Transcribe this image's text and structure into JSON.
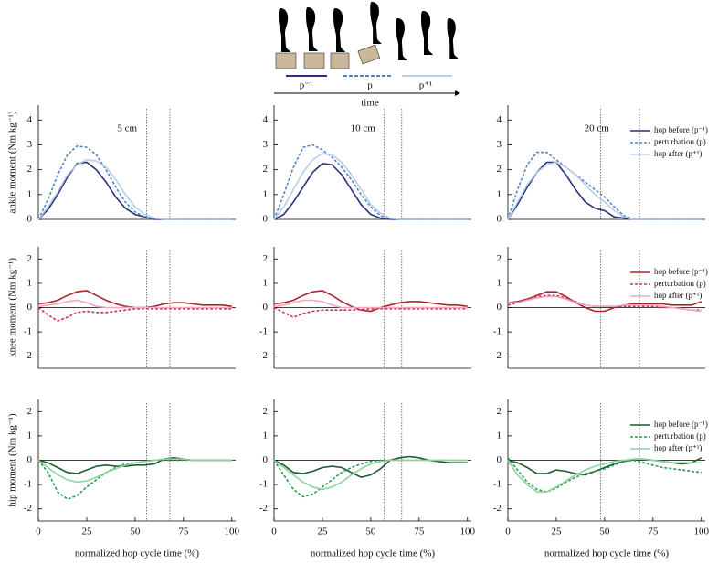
{
  "illustration": {
    "period_labels": [
      "p⁻¹",
      "p",
      "p⁺¹"
    ],
    "time_label": "time"
  },
  "chart_data": [
    {
      "type": "line",
      "annotation": "5 cm",
      "ylabel": "ankle moment (Nm kg⁻¹)",
      "x": [
        0,
        5,
        10,
        15,
        20,
        25,
        30,
        35,
        40,
        45,
        50,
        55,
        60,
        65,
        70,
        75,
        80,
        85,
        90,
        95,
        100
      ],
      "xlim": [
        0,
        102
      ],
      "ylim": [
        0,
        4.6
      ],
      "yticks": [
        0,
        1,
        2,
        3,
        4
      ],
      "vlines": [
        56,
        68
      ],
      "zero_line": false,
      "series": [
        {
          "color": "#2c2f7a",
          "dash": false,
          "values": [
            0,
            0.4,
            1.0,
            1.7,
            2.25,
            2.3,
            2.0,
            1.5,
            0.9,
            0.45,
            0.2,
            0.1,
            0,
            0,
            0,
            0,
            0,
            0,
            0,
            0,
            0
          ]
        },
        {
          "color": "#4f86c6",
          "dash": true,
          "values": [
            0,
            0.8,
            1.8,
            2.6,
            2.95,
            2.9,
            2.6,
            2.0,
            1.3,
            0.7,
            0.3,
            0.1,
            0,
            0,
            0,
            0,
            0,
            0,
            0,
            0,
            0
          ]
        },
        {
          "color": "#b8cde8",
          "dash": false,
          "values": [
            0,
            0.5,
            1.1,
            1.8,
            2.2,
            2.4,
            2.35,
            2.1,
            1.6,
            1.0,
            0.5,
            0.2,
            0.05,
            0,
            0,
            0,
            0,
            0,
            0,
            0,
            0
          ]
        }
      ]
    },
    {
      "type": "line",
      "annotation": "10 cm",
      "x": [
        0,
        5,
        10,
        15,
        20,
        25,
        30,
        35,
        40,
        45,
        50,
        55,
        60,
        65,
        70,
        75,
        80,
        85,
        90,
        95,
        100
      ],
      "xlim": [
        0,
        102
      ],
      "ylim": [
        0,
        4.6
      ],
      "yticks": [
        0,
        1,
        2,
        3,
        4
      ],
      "vlines": [
        57,
        66
      ],
      "zero_line": false,
      "series": [
        {
          "color": "#2c2f7a",
          "dash": false,
          "values": [
            0,
            0.2,
            0.7,
            1.3,
            1.9,
            2.25,
            2.2,
            1.8,
            1.2,
            0.6,
            0.2,
            0.05,
            0,
            0,
            0,
            0,
            0,
            0,
            0,
            0,
            0
          ]
        },
        {
          "color": "#4f86c6",
          "dash": true,
          "values": [
            0,
            1.0,
            2.1,
            2.9,
            3.0,
            2.8,
            2.5,
            2.1,
            1.6,
            1.0,
            0.5,
            0.15,
            0,
            0,
            0,
            0,
            0,
            0,
            0,
            0,
            0
          ]
        },
        {
          "color": "#b8cde8",
          "dash": false,
          "values": [
            0,
            0.5,
            1.2,
            1.9,
            2.4,
            2.65,
            2.6,
            2.3,
            1.8,
            1.2,
            0.6,
            0.25,
            0.05,
            0,
            0,
            0,
            0,
            0,
            0,
            0,
            0
          ]
        }
      ]
    },
    {
      "type": "line",
      "annotation": "20 cm",
      "legend": true,
      "x": [
        0,
        5,
        10,
        15,
        20,
        25,
        30,
        35,
        40,
        45,
        50,
        55,
        60,
        65,
        70,
        75,
        80,
        85,
        90,
        95,
        100
      ],
      "xlim": [
        0,
        102
      ],
      "ylim": [
        0,
        4.6
      ],
      "yticks": [
        0,
        1,
        2,
        3,
        4
      ],
      "vlines": [
        48,
        68
      ],
      "zero_line": false,
      "series": [
        {
          "name": "hop before (p⁻¹)",
          "color": "#2c2f7a",
          "dash": false,
          "values": [
            0,
            0.6,
            1.3,
            1.9,
            2.3,
            2.3,
            1.8,
            1.2,
            0.7,
            0.45,
            0.35,
            0.1,
            0.05,
            0,
            0,
            0,
            0,
            0,
            0,
            0,
            0
          ]
        },
        {
          "name": "perturbation (p)",
          "color": "#4f86c6",
          "dash": true,
          "values": [
            0,
            1.2,
            2.2,
            2.7,
            2.7,
            2.4,
            2.1,
            1.8,
            1.5,
            1.2,
            0.9,
            0.5,
            0.15,
            0.02,
            0,
            0,
            0,
            0,
            0,
            0,
            0
          ]
        },
        {
          "name": "hop after (p⁺¹)",
          "color": "#b8cde8",
          "dash": false,
          "values": [
            0,
            0.7,
            1.4,
            1.9,
            2.2,
            2.3,
            2.1,
            1.8,
            1.4,
            1.0,
            0.7,
            0.35,
            0.1,
            0,
            0,
            0,
            0,
            0,
            0,
            0,
            0
          ]
        }
      ]
    },
    {
      "type": "line",
      "ylabel": "knee moment (Nm kg⁻¹)",
      "x": [
        0,
        5,
        10,
        15,
        20,
        25,
        30,
        35,
        40,
        45,
        50,
        55,
        60,
        65,
        70,
        75,
        80,
        85,
        90,
        95,
        100
      ],
      "xlim": [
        0,
        102
      ],
      "ylim": [
        -2.5,
        2.5
      ],
      "yticks": [
        -2,
        -1,
        0,
        1,
        2
      ],
      "vlines": [
        56,
        68
      ],
      "zero_line": true,
      "series": [
        {
          "color": "#a8272e",
          "dash": false,
          "values": [
            0.15,
            0.2,
            0.3,
            0.5,
            0.65,
            0.7,
            0.5,
            0.3,
            0.15,
            0.05,
            0,
            0,
            0.05,
            0.15,
            0.2,
            0.2,
            0.15,
            0.1,
            0.1,
            0.1,
            0.05
          ]
        },
        {
          "color": "#d4305a",
          "dash": true,
          "values": [
            0,
            -0.3,
            -0.55,
            -0.4,
            -0.2,
            -0.15,
            -0.2,
            -0.2,
            -0.15,
            -0.1,
            -0.05,
            -0.05,
            -0.05,
            -0.05,
            -0.05,
            -0.05,
            -0.05,
            -0.05,
            -0.05,
            -0.05,
            -0.05
          ]
        },
        {
          "color": "#f0a8c0",
          "dash": false,
          "values": [
            0.05,
            0.1,
            0.15,
            0.25,
            0.3,
            0.2,
            0.05,
            0,
            0,
            0,
            0,
            0,
            0,
            0,
            0,
            0,
            0,
            0,
            0,
            0,
            0
          ]
        }
      ]
    },
    {
      "type": "line",
      "x": [
        0,
        5,
        10,
        15,
        20,
        25,
        30,
        35,
        40,
        45,
        50,
        55,
        60,
        65,
        70,
        75,
        80,
        85,
        90,
        95,
        100
      ],
      "xlim": [
        0,
        102
      ],
      "ylim": [
        -2.5,
        2.5
      ],
      "yticks": [
        -2,
        -1,
        0,
        1,
        2
      ],
      "vlines": [
        57,
        66
      ],
      "zero_line": true,
      "series": [
        {
          "color": "#a8272e",
          "dash": false,
          "values": [
            0.15,
            0.2,
            0.3,
            0.5,
            0.65,
            0.7,
            0.5,
            0.25,
            0.05,
            -0.1,
            -0.15,
            0,
            0.1,
            0.2,
            0.25,
            0.25,
            0.2,
            0.15,
            0.1,
            0.1,
            0.05
          ]
        },
        {
          "color": "#d4305a",
          "dash": true,
          "values": [
            0,
            -0.2,
            -0.4,
            -0.25,
            -0.15,
            -0.1,
            -0.1,
            -0.1,
            -0.1,
            -0.08,
            -0.05,
            -0.05,
            -0.05,
            -0.05,
            -0.05,
            -0.05,
            -0.05,
            -0.05,
            -0.05,
            -0.05,
            -0.05
          ]
        },
        {
          "color": "#f0a8c0",
          "dash": false,
          "values": [
            0.05,
            0.1,
            0.2,
            0.3,
            0.3,
            0.25,
            0.1,
            0,
            0,
            0,
            0,
            0,
            0,
            0,
            0,
            0,
            0,
            0,
            0,
            0,
            0
          ]
        }
      ]
    },
    {
      "type": "line",
      "legend": true,
      "x": [
        0,
        5,
        10,
        15,
        20,
        25,
        30,
        35,
        40,
        45,
        50,
        55,
        60,
        65,
        70,
        75,
        80,
        85,
        90,
        95,
        100
      ],
      "xlim": [
        0,
        102
      ],
      "ylim": [
        -2.5,
        2.5
      ],
      "yticks": [
        -2,
        -1,
        0,
        1,
        2
      ],
      "vlines": [
        48,
        68
      ],
      "zero_line": true,
      "series": [
        {
          "name": "hop before (p⁻¹)",
          "color": "#a8272e",
          "dash": false,
          "values": [
            0.2,
            0.25,
            0.35,
            0.5,
            0.65,
            0.65,
            0.45,
            0.2,
            0,
            -0.15,
            -0.15,
            0,
            0.1,
            0.15,
            0.15,
            0.15,
            0.15,
            0.1,
            0.1,
            0.1,
            0.25
          ]
        },
        {
          "name": "perturbation (p)",
          "color": "#d4305a",
          "dash": true,
          "values": [
            0.1,
            0.2,
            0.35,
            0.45,
            0.5,
            0.5,
            0.4,
            0.25,
            0.1,
            0.05,
            0.05,
            0.05,
            0.05,
            0.05,
            0.05,
            0.05,
            0,
            0,
            -0.05,
            -0.1,
            -0.1
          ]
        },
        {
          "name": "hop after (p⁺¹)",
          "color": "#f0a8c0",
          "dash": false,
          "values": [
            0.2,
            0.2,
            0.3,
            0.4,
            0.45,
            0.45,
            0.35,
            0.2,
            0.1,
            0.05,
            0.05,
            0.05,
            0.1,
            0.1,
            0.1,
            0.1,
            0.05,
            0,
            -0.05,
            -0.1,
            -0.15
          ]
        }
      ]
    },
    {
      "type": "line",
      "ylabel": "hip moment (Nm kg⁻¹)",
      "xlabel": "normalized hop cycle time (%)",
      "x": [
        0,
        5,
        10,
        15,
        20,
        25,
        30,
        35,
        40,
        45,
        50,
        55,
        60,
        65,
        70,
        75,
        80,
        85,
        90,
        95,
        100
      ],
      "xlim": [
        0,
        102
      ],
      "xticks": [
        0,
        25,
        50,
        75,
        100
      ],
      "ylim": [
        -2.5,
        2.5
      ],
      "yticks": [
        -2,
        -1,
        0,
        1,
        2
      ],
      "vlines": [
        56,
        68
      ],
      "zero_line": true,
      "series": [
        {
          "color": "#1e5a32",
          "dash": false,
          "values": [
            0,
            -0.1,
            -0.3,
            -0.5,
            -0.55,
            -0.4,
            -0.25,
            -0.2,
            -0.25,
            -0.25,
            -0.2,
            -0.2,
            -0.15,
            0.05,
            0.1,
            0.05,
            0,
            0,
            0,
            0,
            0
          ]
        },
        {
          "color": "#2e9a52",
          "dash": true,
          "values": [
            0,
            -0.5,
            -1.3,
            -1.6,
            -1.45,
            -1.1,
            -0.8,
            -0.5,
            -0.3,
            -0.15,
            -0.1,
            -0.05,
            0,
            0,
            0,
            0,
            0,
            0,
            0,
            0,
            0
          ]
        },
        {
          "color": "#8fd3a0",
          "dash": false,
          "values": [
            0,
            -0.3,
            -0.6,
            -0.8,
            -0.9,
            -0.85,
            -0.7,
            -0.5,
            -0.35,
            -0.2,
            -0.1,
            -0.05,
            0,
            0.05,
            0.05,
            0.05,
            0,
            0,
            0,
            0,
            0
          ]
        }
      ]
    },
    {
      "type": "line",
      "xlabel": "normalized hop cycle time (%)",
      "x": [
        0,
        5,
        10,
        15,
        20,
        25,
        30,
        35,
        40,
        45,
        50,
        55,
        60,
        65,
        70,
        75,
        80,
        85,
        90,
        95,
        100
      ],
      "xlim": [
        0,
        102
      ],
      "xticks": [
        0,
        25,
        50,
        75,
        100
      ],
      "ylim": [
        -2.5,
        2.5
      ],
      "yticks": [
        -2,
        -1,
        0,
        1,
        2
      ],
      "vlines": [
        57,
        66
      ],
      "zero_line": true,
      "series": [
        {
          "color": "#1e5a32",
          "dash": false,
          "values": [
            0,
            -0.2,
            -0.5,
            -0.55,
            -0.45,
            -0.3,
            -0.25,
            -0.3,
            -0.5,
            -0.7,
            -0.6,
            -0.35,
            0,
            0.1,
            0.15,
            0.1,
            0,
            -0.05,
            -0.1,
            -0.1,
            -0.1
          ]
        },
        {
          "color": "#2e9a52",
          "dash": true,
          "values": [
            0,
            -0.6,
            -1.2,
            -1.5,
            -1.4,
            -1.1,
            -0.8,
            -0.5,
            -0.3,
            -0.15,
            -0.05,
            0,
            0,
            0,
            0,
            0,
            0,
            0,
            0,
            0,
            0
          ]
        },
        {
          "color": "#8fd3a0",
          "dash": false,
          "values": [
            0,
            -0.3,
            -0.6,
            -0.9,
            -1.1,
            -1.2,
            -1.1,
            -0.9,
            -0.6,
            -0.35,
            -0.15,
            -0.05,
            0,
            0,
            0,
            0,
            0,
            0,
            0,
            0,
            0
          ]
        }
      ]
    },
    {
      "type": "line",
      "legend": true,
      "xlabel": "normalized hop cycle time (%)",
      "x": [
        0,
        5,
        10,
        15,
        20,
        25,
        30,
        35,
        40,
        45,
        50,
        55,
        60,
        65,
        70,
        75,
        80,
        85,
        90,
        95,
        100
      ],
      "xlim": [
        0,
        102
      ],
      "xticks": [
        0,
        25,
        50,
        75,
        100
      ],
      "ylim": [
        -2.5,
        2.5
      ],
      "yticks": [
        -2,
        -1,
        0,
        1,
        2
      ],
      "vlines": [
        48,
        68
      ],
      "zero_line": true,
      "series": [
        {
          "name": "hop before (p⁻¹)",
          "color": "#1e5a32",
          "dash": false,
          "values": [
            0,
            -0.1,
            -0.3,
            -0.55,
            -0.55,
            -0.4,
            -0.45,
            -0.55,
            -0.6,
            -0.45,
            -0.3,
            -0.15,
            -0.05,
            0.05,
            0.05,
            0,
            -0.05,
            -0.1,
            -0.15,
            -0.1,
            0.1
          ]
        },
        {
          "name": "perturbation (p)",
          "color": "#2e9a52",
          "dash": true,
          "values": [
            0.1,
            -0.4,
            -0.9,
            -1.2,
            -1.3,
            -1.15,
            -0.9,
            -0.7,
            -0.55,
            -0.45,
            -0.35,
            -0.2,
            -0.05,
            0,
            -0.1,
            -0.2,
            -0.3,
            -0.35,
            -0.4,
            -0.45,
            -0.5
          ]
        },
        {
          "name": "hop after (p⁺¹)",
          "color": "#8fd3a0",
          "dash": false,
          "values": [
            0,
            -0.6,
            -1.0,
            -1.3,
            -1.3,
            -1.1,
            -0.85,
            -0.6,
            -0.4,
            -0.25,
            -0.15,
            -0.05,
            0,
            0.05,
            0.05,
            0,
            -0.05,
            -0.1,
            -0.1,
            -0.1,
            -0.1
          ]
        }
      ]
    }
  ]
}
